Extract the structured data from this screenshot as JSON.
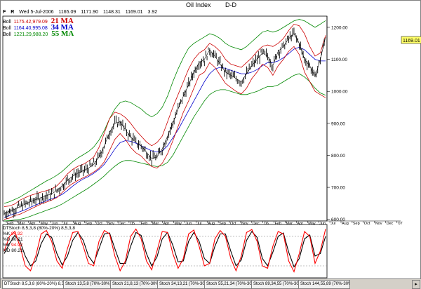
{
  "chart_title": "Oil Index",
  "period": "D-D",
  "header": {
    "flags": [
      "F",
      "R"
    ],
    "date": "Wed 5-Jul-2006",
    "open": "1165.09",
    "high": "1171.90",
    "low": "1148.31",
    "close": "1169.01",
    "change": "3.92"
  },
  "bollinger": [
    {
      "label": "Boll",
      "values": "1175.42,979.09",
      "ma": "21 MA",
      "color": "#cc0000"
    },
    {
      "label": "Boll",
      "values": "1164.40,995.08",
      "ma": "34 MA",
      "color": "#0000cc"
    },
    {
      "label": "Boll",
      "values": "1221.29,988.20",
      "ma": "55 MA",
      "color": "#008800"
    }
  ],
  "last_price_tag": "1169.01",
  "stoch": {
    "title": "DTStoch 8,5,3,8 (80%-20%) 8,5,3,8",
    "lines": [
      {
        "label": "%K",
        "value": "94.92",
        "color": "#ff0000"
      },
      {
        "label": "%D",
        "value": "80.21",
        "color": "#000000"
      },
      {
        "label": "%K",
        "value": "94.92",
        "color": "#ff0000"
      },
      {
        "label": "%D",
        "value": "80.21",
        "color": "#000000"
      }
    ]
  },
  "tabs": [
    "DTStoch 8,5,3,8 (80%-20%) 8,5,3,8",
    "Stoch 13,5,8 (70%-30%)",
    "Stoch 21,8,13 (70%-30%)",
    "Stoch 34,13,21 (70%-30%)",
    "Stoch 55,21,34 (70%-30%)",
    "Stoch 89,34,55 (70%-30%)",
    "Stoch 144,55,89 (70%-30%)"
  ],
  "chart_data": {
    "type": "line",
    "title": "Oil Index",
    "y_ticks": [
      "1200.00",
      "1100.00",
      "1000.00",
      "900.00",
      "800.00",
      "700.00",
      "600.00"
    ],
    "y_tick_values": [
      1200,
      1100,
      1000,
      900,
      800,
      700,
      600
    ],
    "ylim": [
      595,
      1235
    ],
    "x_ticks": [
      "Feb",
      "Mar",
      "Apr",
      "May",
      "Jun",
      "Jul",
      "Aug",
      "Sep",
      "Oct",
      "Nov",
      "Dec",
      "'05",
      "Feb",
      "Mar",
      "Apr",
      "May",
      "Jun",
      "Jul",
      "Aug",
      "Sep",
      "Oct",
      "Nov",
      "Dec",
      "'06",
      "Feb",
      "Mar",
      "Apr",
      "May",
      "Jun",
      "Jul",
      "Aug",
      "Sep",
      "Oct",
      "Nov",
      "Dec",
      "'07"
    ],
    "stoch_ylim": [
      0,
      100
    ],
    "stoch_levels": [
      80,
      20
    ],
    "close_series": [
      618,
      625,
      632,
      640,
      648,
      655,
      662,
      668,
      674,
      680,
      690,
      705,
      722,
      735,
      745,
      752,
      760,
      772,
      795,
      830,
      872,
      900,
      905,
      880,
      858,
      840,
      830,
      810,
      790,
      795,
      820,
      860,
      900,
      945,
      985,
      1020,
      1060,
      1090,
      1100,
      1130,
      1110,
      1085,
      1060,
      1050,
      1040,
      1030,
      1055,
      1080,
      1100,
      1120,
      1110,
      1080,
      1125,
      1140,
      1165,
      1180,
      1150,
      1100,
      1080,
      1045,
      1100,
      1169
    ],
    "upper_band_21": [
      640,
      642,
      648,
      660,
      668,
      675,
      680,
      685,
      690,
      695,
      705,
      722,
      742,
      756,
      766,
      772,
      782,
      795,
      825,
      870,
      915,
      935,
      930,
      918,
      900,
      878,
      860,
      842,
      830,
      840,
      860,
      905,
      950,
      990,
      1030,
      1070,
      1100,
      1120,
      1130,
      1150,
      1140,
      1125,
      1100,
      1085,
      1080,
      1075,
      1090,
      1105,
      1125,
      1140,
      1145,
      1140,
      1150,
      1165,
      1190,
      1210,
      1205,
      1180,
      1140,
      1110,
      1120,
      1175
    ],
    "lower_band_21": [
      600,
      604,
      612,
      616,
      624,
      632,
      640,
      648,
      654,
      660,
      668,
      684,
      700,
      712,
      722,
      730,
      738,
      748,
      760,
      780,
      815,
      850,
      868,
      850,
      825,
      808,
      798,
      780,
      765,
      760,
      775,
      805,
      845,
      890,
      935,
      970,
      1010,
      1050,
      1060,
      1090,
      1075,
      1050,
      1025,
      1012,
      1000,
      992,
      1010,
      1040,
      1060,
      1085,
      1075,
      1050,
      1080,
      1100,
      1125,
      1140,
      1115,
      1060,
      1030,
      1000,
      990,
      980
    ],
    "mid_34": [
      606,
      612,
      618,
      624,
      630,
      638,
      645,
      652,
      658,
      664,
      670,
      678,
      690,
      704,
      716,
      726,
      734,
      744,
      756,
      772,
      795,
      820,
      840,
      846,
      844,
      838,
      830,
      822,
      814,
      810,
      814,
      830,
      855,
      880,
      910,
      940,
      970,
      1000,
      1030,
      1055,
      1070,
      1075,
      1072,
      1066,
      1060,
      1055,
      1055,
      1060,
      1068,
      1080,
      1090,
      1090,
      1095,
      1105,
      1118,
      1132,
      1138,
      1130,
      1115,
      1100,
      1095,
      1095
    ],
    "upper_band_55": [
      650,
      655,
      662,
      670,
      680,
      690,
      700,
      710,
      720,
      728,
      738,
      750,
      765,
      780,
      792,
      802,
      812,
      826,
      848,
      878,
      915,
      945,
      965,
      970,
      965,
      955,
      945,
      930,
      920,
      930,
      950,
      985,
      1030,
      1070,
      1105,
      1135,
      1150,
      1160,
      1170,
      1180,
      1175,
      1165,
      1150,
      1140,
      1135,
      1130,
      1140,
      1155,
      1170,
      1185,
      1190,
      1185,
      1190,
      1200,
      1210,
      1220,
      1225,
      1220,
      1210,
      1200,
      1210,
      1221
    ],
    "lower_band_55": [
      595,
      596,
      598,
      600,
      604,
      610,
      616,
      622,
      628,
      634,
      640,
      648,
      658,
      668,
      678,
      688,
      698,
      710,
      722,
      736,
      752,
      766,
      778,
      784,
      784,
      780,
      776,
      772,
      768,
      765,
      768,
      778,
      800,
      830,
      860,
      890,
      920,
      945,
      970,
      990,
      1000,
      1005,
      1005,
      1000,
      995,
      990,
      990,
      995,
      1000,
      1008,
      1015,
      1015,
      1020,
      1030,
      1040,
      1050,
      1055,
      1045,
      1030,
      1010,
      995,
      988
    ],
    "stoch_k": [
      50,
      80,
      90,
      60,
      20,
      10,
      40,
      85,
      92,
      70,
      30,
      15,
      55,
      88,
      90,
      60,
      25,
      20,
      70,
      92,
      85,
      40,
      10,
      30,
      80,
      95,
      75,
      30,
      12,
      50,
      90,
      88,
      45,
      15,
      35,
      85,
      93,
      60,
      20,
      25,
      75,
      92,
      80,
      35,
      10,
      40,
      88,
      94,
      70,
      20,
      15,
      60,
      90,
      85,
      30,
      8,
      45,
      90,
      80,
      25,
      50,
      95
    ],
    "stoch_d": [
      45,
      65,
      82,
      70,
      40,
      20,
      30,
      65,
      85,
      78,
      45,
      22,
      40,
      72,
      88,
      72,
      40,
      25,
      55,
      85,
      87,
      55,
      25,
      25,
      60,
      88,
      82,
      45,
      20,
      38,
      75,
      88,
      62,
      28,
      30,
      70,
      88,
      70,
      35,
      25,
      60,
      85,
      85,
      50,
      20,
      32,
      72,
      90,
      78,
      35,
      20,
      48,
      80,
      87,
      48,
      18,
      35,
      75,
      83,
      40,
      45,
      80
    ]
  }
}
